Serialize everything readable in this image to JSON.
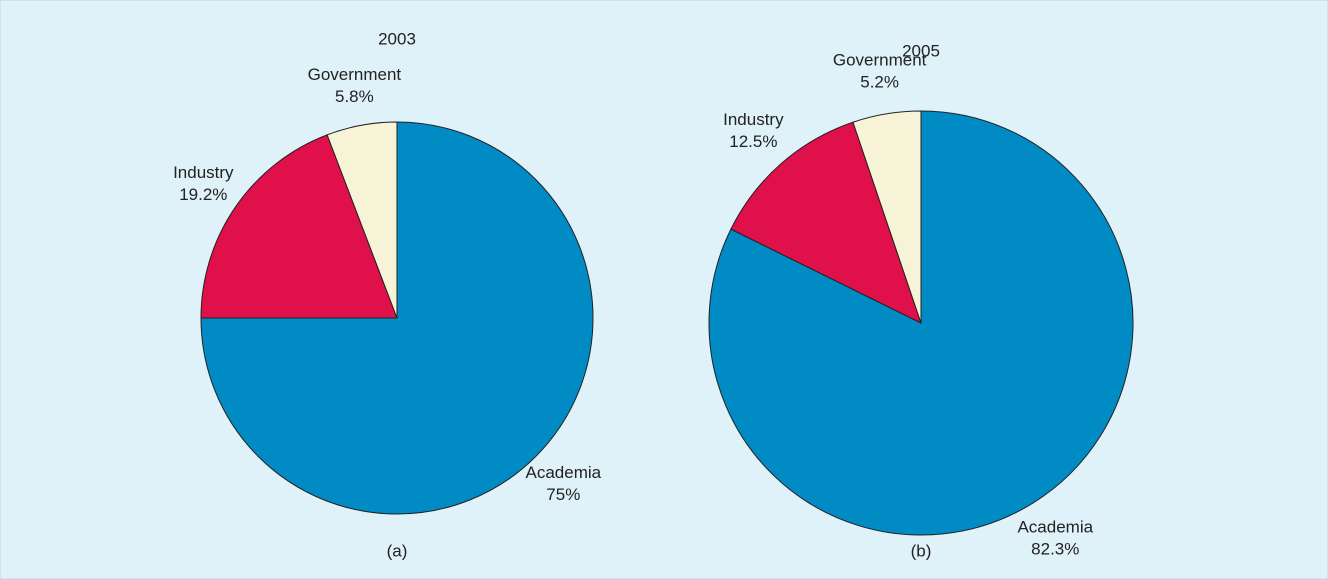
{
  "chart_data": [
    {
      "type": "pie",
      "title": "2003",
      "caption": "(a)",
      "categories": [
        "Academia",
        "Industry",
        "Government"
      ],
      "values": [
        75,
        19.2,
        5.8
      ],
      "value_labels": [
        "75%",
        "19.2%",
        "5.8%"
      ],
      "colors": [
        "#008bc4",
        "#e0104a",
        "#f7f3d6"
      ]
    },
    {
      "type": "pie",
      "title": "2005",
      "caption": "(b)",
      "categories": [
        "Academia",
        "Industry",
        "Government"
      ],
      "values": [
        82.3,
        12.5,
        5.2
      ],
      "value_labels": [
        "82.3%",
        "12.5%",
        "5.2%"
      ],
      "colors": [
        "#008bc4",
        "#e0104a",
        "#f7f3d6"
      ]
    }
  ]
}
